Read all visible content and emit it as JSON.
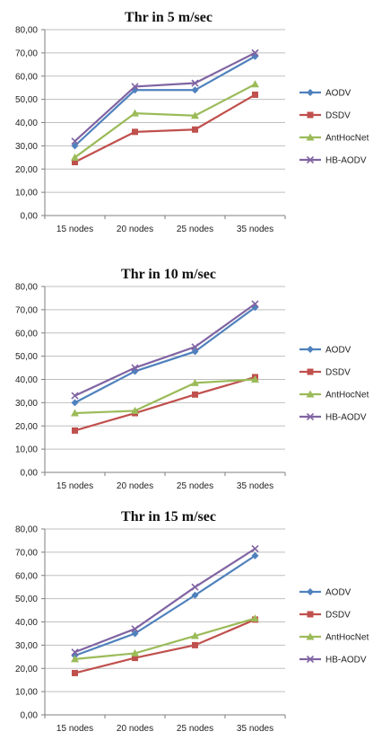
{
  "colors": {
    "AODV": "#4F81BD",
    "DSDV": "#C0504D",
    "AntHocNet": "#9BBB59",
    "HB-AODV": "#8064A2",
    "grid": "#BFBFBF",
    "axis": "#7F7F7F"
  },
  "chart_data": [
    {
      "type": "line",
      "title": "Thr in 5 m/sec",
      "categories": [
        "15 nodes",
        "20 nodes",
        "25 nodes",
        "35 nodes"
      ],
      "ylim": [
        0,
        80
      ],
      "yticks": [
        "0,00",
        "10,00",
        "20,00",
        "30,00",
        "40,00",
        "50,00",
        "60,00",
        "70,00",
        "80,00"
      ],
      "grid": true,
      "legend": "right",
      "series": [
        {
          "name": "AODV",
          "marker": "diamond",
          "values": [
            30,
            54,
            54,
            68.5
          ]
        },
        {
          "name": "DSDV",
          "marker": "square",
          "values": [
            23,
            36,
            37,
            52
          ]
        },
        {
          "name": "AntHocNet",
          "marker": "triangle",
          "values": [
            25,
            44,
            43,
            56.5
          ]
        },
        {
          "name": "HB-AODV",
          "marker": "x",
          "values": [
            32,
            55.5,
            57,
            70
          ]
        }
      ]
    },
    {
      "type": "line",
      "title": "Thr in 10 m/sec",
      "categories": [
        "15 nodes",
        "20 nodes",
        "25 nodes",
        "35 nodes"
      ],
      "ylim": [
        0,
        80
      ],
      "yticks": [
        "0,00",
        "10,00",
        "20,00",
        "30,00",
        "40,00",
        "50,00",
        "60,00",
        "70,00",
        "80,00"
      ],
      "grid": true,
      "legend": "right",
      "series": [
        {
          "name": "AODV",
          "marker": "diamond",
          "values": [
            30,
            43.5,
            52,
            71
          ]
        },
        {
          "name": "DSDV",
          "marker": "square",
          "values": [
            18,
            25.5,
            33.5,
            41
          ]
        },
        {
          "name": "AntHocNet",
          "marker": "triangle",
          "values": [
            25.5,
            26.5,
            38.5,
            40
          ]
        },
        {
          "name": "HB-AODV",
          "marker": "x",
          "values": [
            33,
            45,
            54,
            72.5
          ]
        }
      ]
    },
    {
      "type": "line",
      "title": "Thr in 15 m/sec",
      "categories": [
        "15 nodes",
        "20 nodes",
        "25 nodes",
        "35 nodes"
      ],
      "ylim": [
        0,
        80
      ],
      "yticks": [
        "0,00",
        "10,00",
        "20,00",
        "30,00",
        "40,00",
        "50,00",
        "60,00",
        "70,00",
        "80,00"
      ],
      "grid": true,
      "legend": "right",
      "series": [
        {
          "name": "AODV",
          "marker": "diamond",
          "values": [
            25.5,
            35,
            51.5,
            68.5
          ]
        },
        {
          "name": "DSDV",
          "marker": "square",
          "values": [
            18,
            24.5,
            30,
            41
          ]
        },
        {
          "name": "AntHocNet",
          "marker": "triangle",
          "values": [
            24,
            26.5,
            34,
            41.5
          ]
        },
        {
          "name": "HB-AODV",
          "marker": "x",
          "values": [
            27,
            37,
            55,
            71.5
          ]
        }
      ]
    }
  ]
}
